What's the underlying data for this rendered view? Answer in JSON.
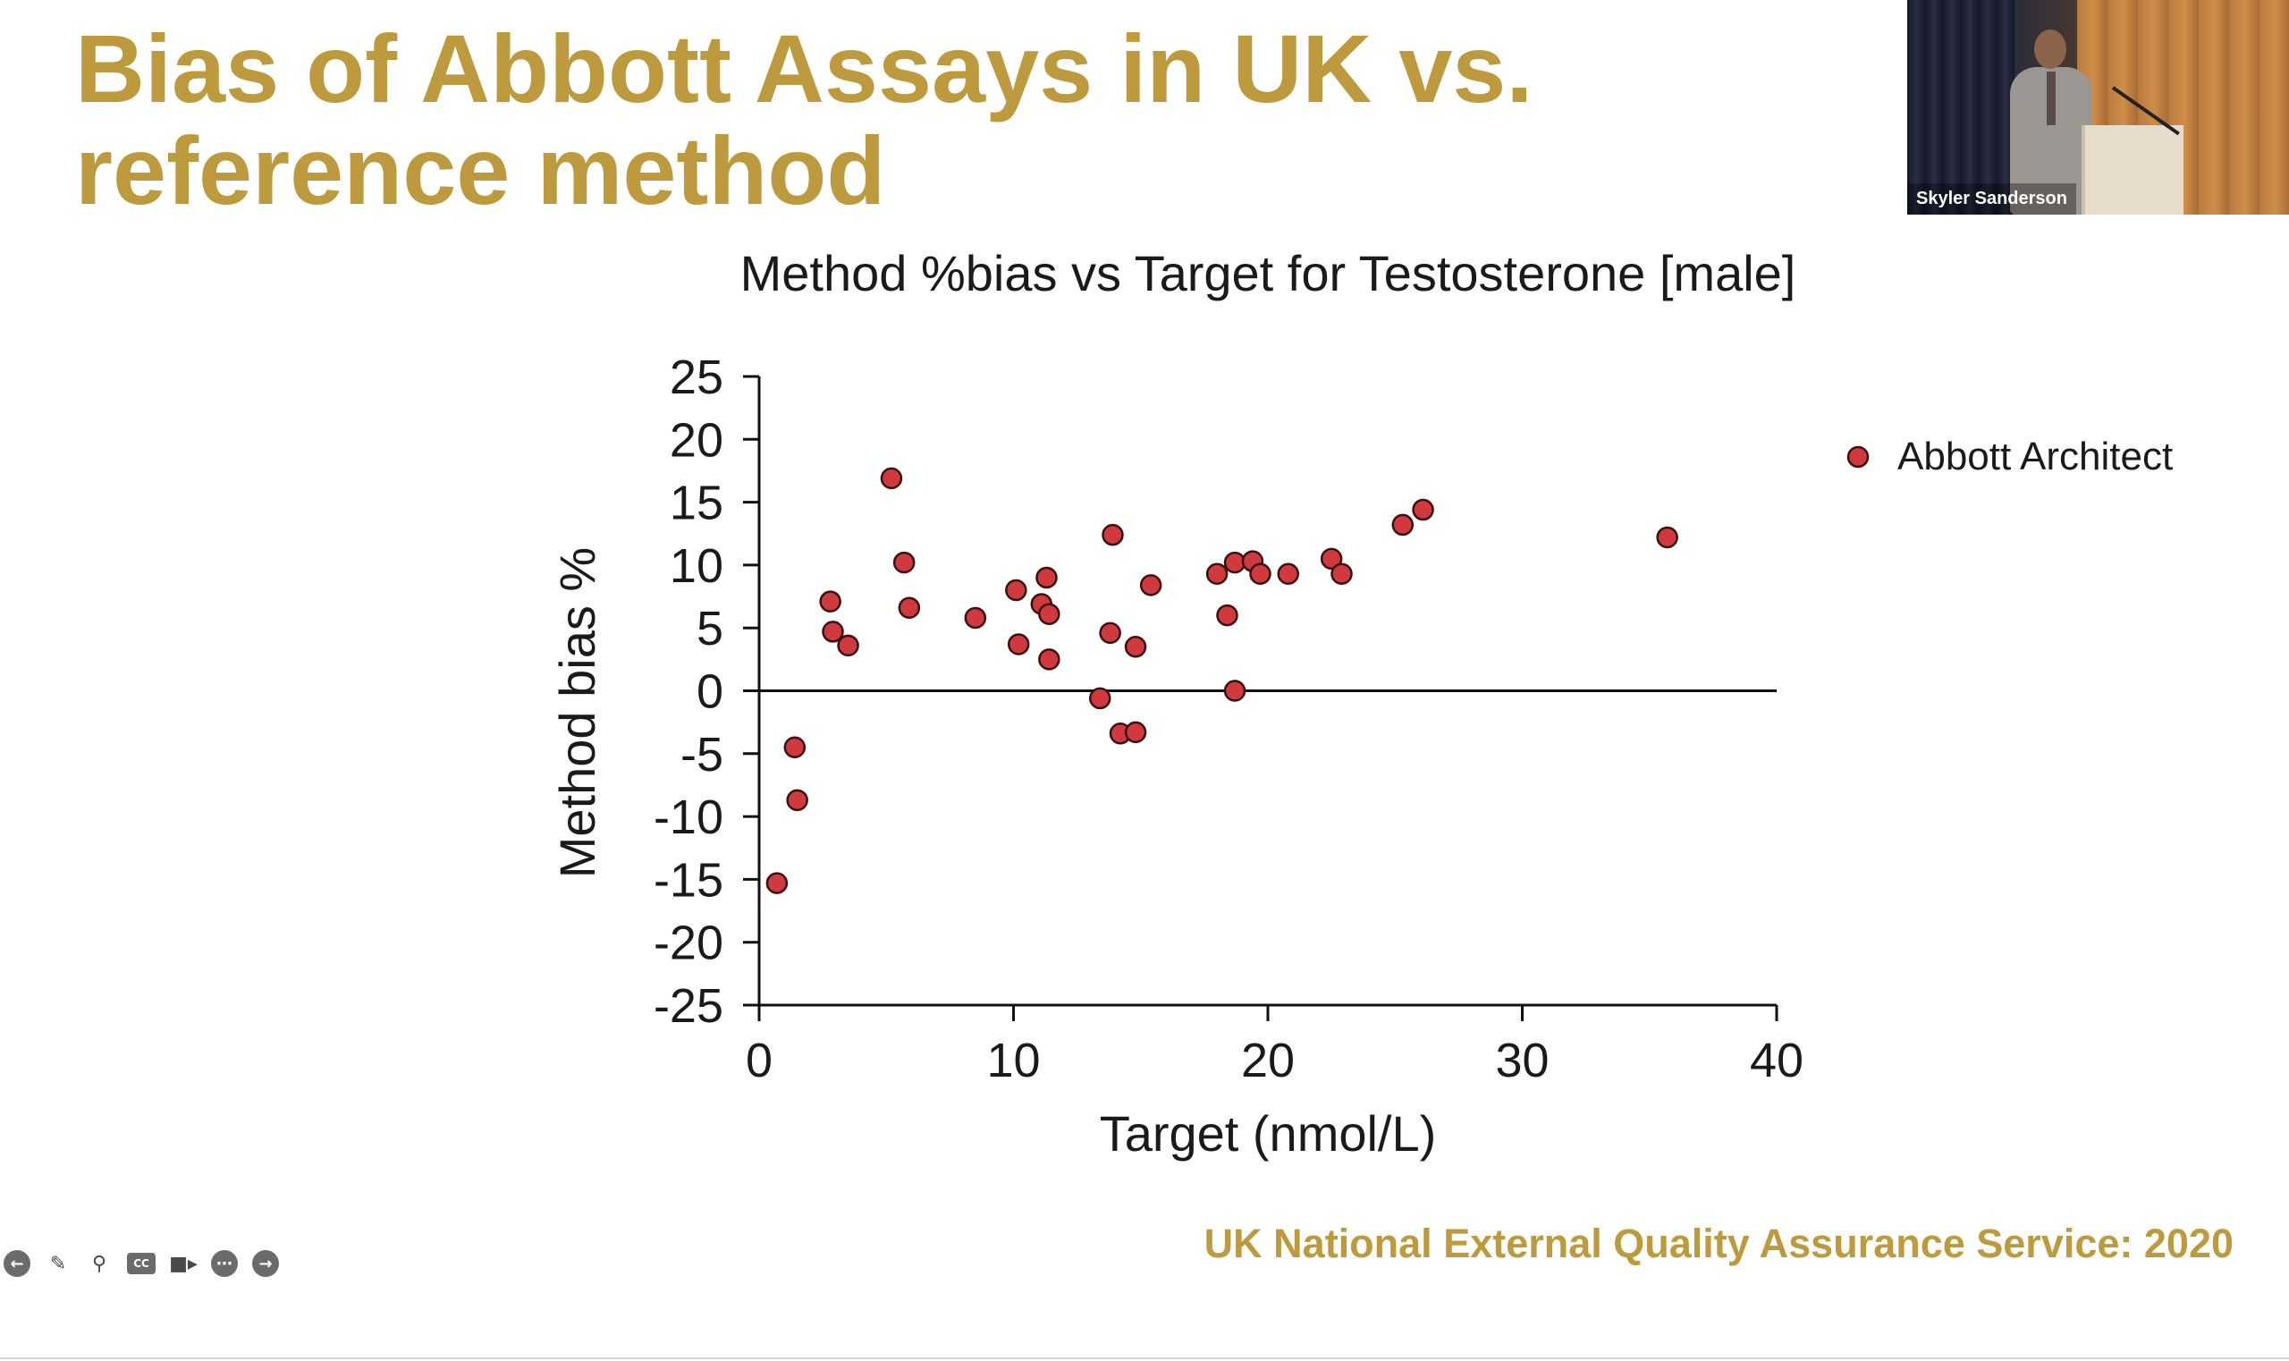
{
  "slide": {
    "title_line1": "Bias of Abbott Assays in UK vs.",
    "title_line2": "reference method",
    "source": "UK National External Quality Assurance Service: 2020",
    "accent_color": "#BE9A3E"
  },
  "video": {
    "presenter_name": "Skyler Sanderson"
  },
  "toolbar": {
    "icons": [
      "back-arrow-icon",
      "pen-icon",
      "zoom-icon",
      "captions-icon",
      "video-camera-icon",
      "more-icon",
      "forward-arrow-icon"
    ]
  },
  "chart_data": {
    "type": "scatter",
    "title": "Method %bias vs Target for Testosterone [male]",
    "xlabel": "Target (nmol/L)",
    "ylabel": "Method bias %",
    "xlim": [
      0,
      40
    ],
    "ylim": [
      -25,
      25
    ],
    "x_ticks": [
      "0",
      "10",
      "20",
      "30",
      "40"
    ],
    "y_ticks": [
      "25",
      "20",
      "15",
      "10",
      "5",
      "0",
      "-5",
      "-10",
      "-15",
      "-20",
      "-25"
    ],
    "grid": false,
    "legend_position": "top-right",
    "reference_line_y": 0,
    "series": [
      {
        "name": "Abbott Architect",
        "color": "#D03A3F",
        "points": [
          [
            0.7,
            -15.3
          ],
          [
            1.4,
            -4.5
          ],
          [
            1.5,
            -8.7
          ],
          [
            2.8,
            7.1
          ],
          [
            2.9,
            4.7
          ],
          [
            3.5,
            3.6
          ],
          [
            5.2,
            16.9
          ],
          [
            5.7,
            10.2
          ],
          [
            5.9,
            6.6
          ],
          [
            8.5,
            5.8
          ],
          [
            10.1,
            8.0
          ],
          [
            10.2,
            3.7
          ],
          [
            11.1,
            6.9
          ],
          [
            11.3,
            9.0
          ],
          [
            11.4,
            6.1
          ],
          [
            11.4,
            2.5
          ],
          [
            13.4,
            -0.6
          ],
          [
            13.8,
            4.6
          ],
          [
            13.9,
            12.4
          ],
          [
            14.2,
            -3.4
          ],
          [
            14.8,
            -3.3
          ],
          [
            14.8,
            3.5
          ],
          [
            15.4,
            8.4
          ],
          [
            18.0,
            9.3
          ],
          [
            18.4,
            6.0
          ],
          [
            18.7,
            10.2
          ],
          [
            18.7,
            0.0
          ],
          [
            19.4,
            10.3
          ],
          [
            19.7,
            9.3
          ],
          [
            20.8,
            9.3
          ],
          [
            22.5,
            10.5
          ],
          [
            22.9,
            9.3
          ],
          [
            25.3,
            13.2
          ],
          [
            26.1,
            14.4
          ],
          [
            35.7,
            12.2
          ]
        ]
      }
    ]
  }
}
